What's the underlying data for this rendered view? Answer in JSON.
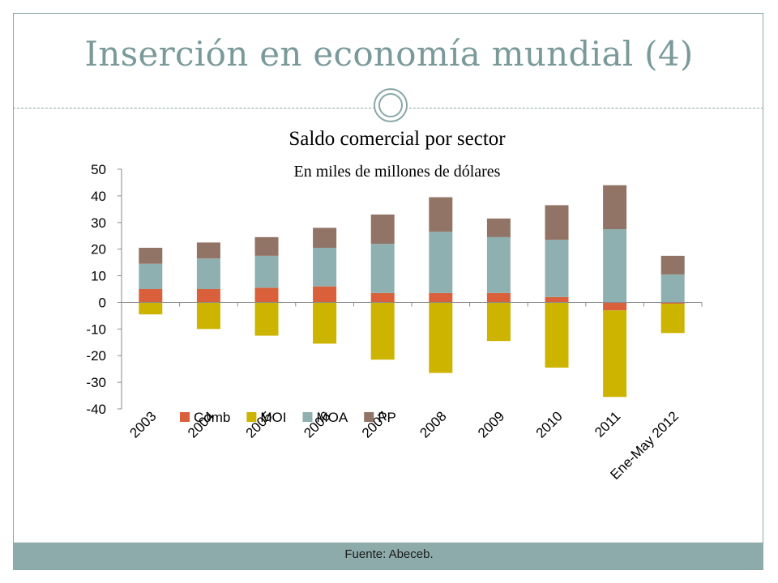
{
  "slide": {
    "title": "Inserción en economía mundial (4)",
    "footer": "Fuente: Abeceb."
  },
  "chart_data": {
    "type": "bar",
    "stacked": true,
    "title": "Saldo comercial por sector",
    "subtitle": "En miles de millones de dólares",
    "categories": [
      "2003",
      "2004",
      "2005",
      "2006",
      "2007",
      "2008",
      "2009",
      "2010",
      "2011",
      "Ene-May 2012"
    ],
    "series": [
      {
        "name": "Comb",
        "color": "#d9603b",
        "values": [
          5,
          5,
          5.5,
          6,
          3.5,
          3.5,
          3.5,
          2,
          -3,
          -0.5
        ]
      },
      {
        "name": "MOI",
        "color": "#ccb400",
        "values": [
          -4.5,
          -10,
          -12.5,
          -15.5,
          -21.5,
          -26.5,
          -14.5,
          -24.5,
          -32.5,
          -11
        ]
      },
      {
        "name": "MOA",
        "color": "#8fb0b0",
        "values": [
          9.5,
          11.5,
          12,
          14.5,
          18.5,
          23,
          21,
          21.5,
          27.5,
          10.5
        ]
      },
      {
        "name": "PP",
        "color": "#917466",
        "values": [
          6,
          6,
          7,
          7.5,
          11,
          13,
          7,
          13,
          16.5,
          7
        ]
      }
    ],
    "ylim": [
      -40,
      50
    ],
    "yticks": [
      50,
      40,
      30,
      20,
      10,
      0,
      -10,
      -20,
      -30,
      -40
    ],
    "xlabel": "",
    "ylabel": "",
    "grid": false,
    "legend_position": "bottom-center, inside plot area"
  }
}
